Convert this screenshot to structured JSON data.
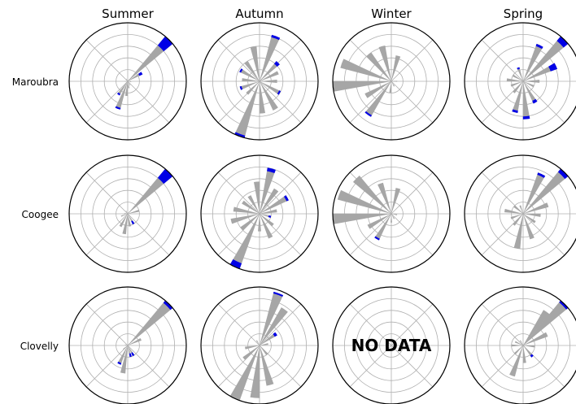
{
  "chart_data": {
    "type": "polar-bar",
    "seasons": [
      "Summer",
      "Autumn",
      "Winter",
      "Spring"
    ],
    "sites": [
      "Maroubra",
      "Coogee",
      "Clovelly"
    ],
    "no_data_label": "NO DATA",
    "radial_max": 1.0,
    "radial_rings": [
      0.2,
      0.4,
      0.6,
      0.8
    ],
    "colors": {
      "bar": "#a6a6a6",
      "highlight": "#0000e6",
      "grid": "#b0b0b0",
      "frame": "#000000"
    },
    "panels": [
      {
        "site": "Maroubra",
        "season": "Summer",
        "no_data": false,
        "bars": [
          {
            "dir": 45,
            "value": 1.0,
            "highlight": 0.2
          },
          {
            "dir": 60,
            "value": 0.28,
            "highlight": 0.06
          },
          {
            "dir": 200,
            "value": 0.5,
            "highlight": 0.03
          },
          {
            "dir": 215,
            "value": 0.28,
            "highlight": 0.03
          },
          {
            "dir": 185,
            "value": 0.25
          },
          {
            "dir": 170,
            "value": 0.12
          },
          {
            "dir": 150,
            "value": 0.08
          },
          {
            "dir": 100,
            "value": 0.06
          },
          {
            "dir": 270,
            "value": 0.05
          },
          {
            "dir": 330,
            "value": 0.05
          }
        ]
      },
      {
        "site": "Maroubra",
        "season": "Autumn",
        "no_data": false,
        "bars": [
          {
            "dir": 20,
            "value": 0.82,
            "highlight": 0.04
          },
          {
            "dir": 45,
            "value": 0.45,
            "highlight": 0.06
          },
          {
            "dir": 65,
            "value": 0.35
          },
          {
            "dir": 90,
            "value": 0.3
          },
          {
            "dir": 120,
            "value": 0.4,
            "highlight": 0.03
          },
          {
            "dir": 150,
            "value": 0.55
          },
          {
            "dir": 175,
            "value": 0.55
          },
          {
            "dir": 200,
            "value": 1.0,
            "highlight": 0.04
          },
          {
            "dir": 225,
            "value": 0.3
          },
          {
            "dir": 250,
            "value": 0.35,
            "highlight": 0.03
          },
          {
            "dir": 275,
            "value": 0.3
          },
          {
            "dir": 300,
            "value": 0.38,
            "highlight": 0.03
          },
          {
            "dir": 325,
            "value": 0.4
          },
          {
            "dir": 350,
            "value": 0.6
          }
        ]
      },
      {
        "site": "Maroubra",
        "season": "Winter",
        "no_data": false,
        "bars": [
          {
            "dir": 15,
            "value": 0.45
          },
          {
            "dir": 90,
            "value": 0.1
          },
          {
            "dir": 150,
            "value": 0.1
          },
          {
            "dir": 185,
            "value": 0.2
          },
          {
            "dir": 215,
            "value": 0.7,
            "highlight": 0.03
          },
          {
            "dir": 240,
            "value": 0.5
          },
          {
            "dir": 265,
            "value": 1.0
          },
          {
            "dir": 290,
            "value": 0.9
          },
          {
            "dir": 320,
            "value": 0.6
          },
          {
            "dir": 345,
            "value": 0.62
          }
        ]
      },
      {
        "site": "Maroubra",
        "season": "Spring",
        "no_data": false,
        "bars": [
          {
            "dir": 25,
            "value": 0.68,
            "highlight": 0.04
          },
          {
            "dir": 45,
            "value": 1.0,
            "highlight": 0.1
          },
          {
            "dir": 65,
            "value": 0.62,
            "highlight": 0.12
          },
          {
            "dir": 90,
            "value": 0.28
          },
          {
            "dir": 115,
            "value": 0.2
          },
          {
            "dir": 150,
            "value": 0.42,
            "highlight": 0.05
          },
          {
            "dir": 175,
            "value": 0.65,
            "highlight": 0.05
          },
          {
            "dir": 195,
            "value": 0.55,
            "highlight": 0.04
          },
          {
            "dir": 220,
            "value": 0.25
          },
          {
            "dir": 250,
            "value": 0.22
          },
          {
            "dir": 275,
            "value": 0.28
          },
          {
            "dir": 300,
            "value": 0.2
          },
          {
            "dir": 340,
            "value": 0.25,
            "highlight": 0.03
          }
        ]
      },
      {
        "site": "Coogee",
        "season": "Summer",
        "no_data": false,
        "bars": [
          {
            "dir": 45,
            "value": 1.0,
            "highlight": 0.2
          },
          {
            "dir": 75,
            "value": 0.2
          },
          {
            "dir": 150,
            "value": 0.2,
            "highlight": 0.06
          },
          {
            "dir": 170,
            "value": 0.22
          },
          {
            "dir": 190,
            "value": 0.35
          },
          {
            "dir": 210,
            "value": 0.25
          },
          {
            "dir": 250,
            "value": 0.12
          },
          {
            "dir": 280,
            "value": 0.06
          },
          {
            "dir": 330,
            "value": 0.06
          }
        ]
      },
      {
        "site": "Coogee",
        "season": "Autumn",
        "no_data": false,
        "bars": [
          {
            "dir": 15,
            "value": 0.8,
            "highlight": 0.06
          },
          {
            "dir": 35,
            "value": 0.5
          },
          {
            "dir": 60,
            "value": 0.55,
            "highlight": 0.04
          },
          {
            "dir": 80,
            "value": 0.3
          },
          {
            "dir": 105,
            "value": 0.2,
            "highlight": 0.04
          },
          {
            "dir": 130,
            "value": 0.3
          },
          {
            "dir": 155,
            "value": 0.45
          },
          {
            "dir": 180,
            "value": 0.3
          },
          {
            "dir": 205,
            "value": 1.0,
            "highlight": 0.1
          },
          {
            "dir": 230,
            "value": 0.4
          },
          {
            "dir": 255,
            "value": 0.5
          },
          {
            "dir": 280,
            "value": 0.45
          },
          {
            "dir": 305,
            "value": 0.35
          },
          {
            "dir": 330,
            "value": 0.35
          },
          {
            "dir": 355,
            "value": 0.55
          }
        ]
      },
      {
        "site": "Coogee",
        "season": "Winter",
        "no_data": false,
        "bars": [
          {
            "dir": 15,
            "value": 0.45
          },
          {
            "dir": 100,
            "value": 0.1
          },
          {
            "dir": 150,
            "value": 0.1
          },
          {
            "dir": 180,
            "value": 0.15
          },
          {
            "dir": 210,
            "value": 0.5,
            "highlight": 0.03
          },
          {
            "dir": 240,
            "value": 0.45
          },
          {
            "dir": 265,
            "value": 1.0
          },
          {
            "dir": 290,
            "value": 0.95
          },
          {
            "dir": 315,
            "value": 0.85
          },
          {
            "dir": 340,
            "value": 0.55
          }
        ]
      },
      {
        "site": "Coogee",
        "season": "Spring",
        "no_data": false,
        "bars": [
          {
            "dir": 25,
            "value": 0.75,
            "highlight": 0.04
          },
          {
            "dir": 45,
            "value": 1.0,
            "highlight": 0.07
          },
          {
            "dir": 70,
            "value": 0.45
          },
          {
            "dir": 95,
            "value": 0.3
          },
          {
            "dir": 125,
            "value": 0.25
          },
          {
            "dir": 160,
            "value": 0.45
          },
          {
            "dir": 190,
            "value": 0.6
          },
          {
            "dir": 220,
            "value": 0.25
          },
          {
            "dir": 250,
            "value": 0.22
          },
          {
            "dir": 280,
            "value": 0.32
          },
          {
            "dir": 310,
            "value": 0.2
          },
          {
            "dir": 340,
            "value": 0.15
          }
        ]
      },
      {
        "site": "Clovelly",
        "season": "Summer",
        "no_data": false,
        "bars": [
          {
            "dir": 45,
            "value": 1.0,
            "highlight": 0.05
          },
          {
            "dir": 65,
            "value": 0.25
          },
          {
            "dir": 150,
            "value": 0.2,
            "highlight": 0.06
          },
          {
            "dir": 165,
            "value": 0.2,
            "highlight": 0.06
          },
          {
            "dir": 190,
            "value": 0.48
          },
          {
            "dir": 205,
            "value": 0.35,
            "highlight": 0.03
          },
          {
            "dir": 230,
            "value": 0.1
          },
          {
            "dir": 290,
            "value": 0.05
          }
        ]
      },
      {
        "site": "Clovelly",
        "season": "Autumn",
        "no_data": false,
        "bars": [
          {
            "dir": 20,
            "value": 0.95,
            "highlight": 0.03
          },
          {
            "dir": 35,
            "value": 0.75
          },
          {
            "dir": 55,
            "value": 0.35,
            "highlight": 0.05
          },
          {
            "dir": 80,
            "value": 0.15
          },
          {
            "dir": 140,
            "value": 0.2
          },
          {
            "dir": 165,
            "value": 0.7
          },
          {
            "dir": 185,
            "value": 0.9
          },
          {
            "dir": 205,
            "value": 1.0
          },
          {
            "dir": 230,
            "value": 0.35
          },
          {
            "dir": 260,
            "value": 0.25
          },
          {
            "dir": 330,
            "value": 0.1
          }
        ]
      },
      {
        "site": "Clovelly",
        "season": "Winter",
        "no_data": true,
        "bars": []
      },
      {
        "site": "Clovelly",
        "season": "Spring",
        "no_data": false,
        "bars": [
          {
            "dir": 35,
            "value": 0.7
          },
          {
            "dir": 45,
            "value": 1.0,
            "highlight": 0.04
          },
          {
            "dir": 65,
            "value": 0.45
          },
          {
            "dir": 95,
            "value": 0.2
          },
          {
            "dir": 140,
            "value": 0.25,
            "highlight": 0.04
          },
          {
            "dir": 175,
            "value": 0.3
          },
          {
            "dir": 200,
            "value": 0.55
          },
          {
            "dir": 225,
            "value": 0.2
          },
          {
            "dir": 270,
            "value": 0.2
          },
          {
            "dir": 295,
            "value": 0.15
          },
          {
            "dir": 330,
            "value": 0.1
          }
        ]
      }
    ]
  }
}
